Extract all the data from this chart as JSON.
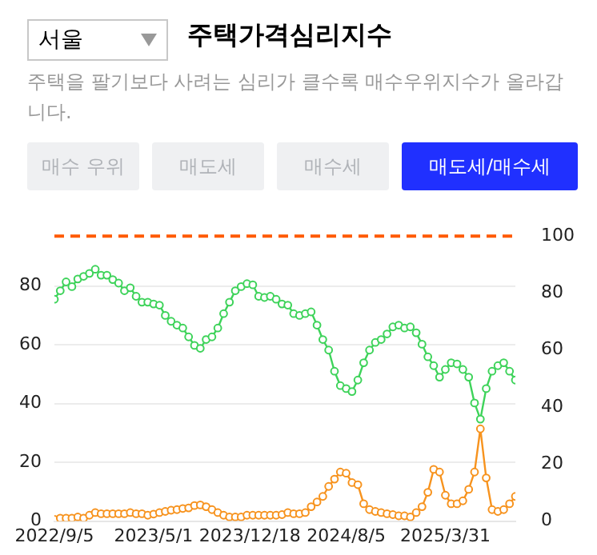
{
  "chart_data": {
    "type": "line",
    "title": "주택가격심리지수",
    "subtitle": "주택을 팔기보다 사려는 심리가 클수록 매수우위지수가 올라갑니다.",
    "annotations": [
      "서울",
      "매수 우위",
      "매도세",
      "매수세",
      "매도세/매수세"
    ],
    "x": [
      "2022-09-05",
      "2022-09-19",
      "2022-10-03",
      "2022-10-17",
      "2022-10-31",
      "2022-11-14",
      "2022-11-28",
      "2022-12-12",
      "2022-12-26",
      "2023-01-09",
      "2023-01-23",
      "2023-02-06",
      "2023-02-20",
      "2023-03-06",
      "2023-03-20",
      "2023-04-03",
      "2023-04-17",
      "2023-05-01",
      "2023-05-15",
      "2023-05-29",
      "2023-06-12",
      "2023-06-26",
      "2023-07-10",
      "2023-07-24",
      "2023-08-07",
      "2023-08-21",
      "2023-09-04",
      "2023-09-18",
      "2023-10-02",
      "2023-10-16",
      "2023-10-30",
      "2023-11-13",
      "2023-11-27",
      "2023-12-11",
      "2023-12-25",
      "2024-01-08",
      "2024-01-22",
      "2024-02-05",
      "2024-02-19",
      "2024-03-04",
      "2024-03-18",
      "2024-04-01",
      "2024-04-15",
      "2024-04-29",
      "2024-05-13",
      "2024-05-27",
      "2024-06-10",
      "2024-06-24",
      "2024-07-08",
      "2024-07-22",
      "2024-08-05",
      "2024-08-19",
      "2024-09-02",
      "2024-09-16",
      "2024-09-30",
      "2024-10-14",
      "2024-10-28",
      "2024-11-11",
      "2024-11-25",
      "2024-12-09",
      "2024-12-23",
      "2025-01-06",
      "2025-01-20",
      "2025-02-03",
      "2025-02-17",
      "2025-03-03",
      "2025-03-17",
      "2025-03-31",
      "2025-04-14",
      "2025-04-28",
      "2025-05-12",
      "2025-05-26",
      "2025-06-09",
      "2025-06-23",
      "2025-07-07",
      "2025-07-21",
      "2025-08-04",
      "2025-08-18",
      "2025-09-01",
      "2025-09-15"
    ],
    "series": [
      {
        "color": "#3ed35a",
        "values": [
          75.5,
          78.4,
          81.4,
          79.8,
          82.4,
          83.3,
          84.3,
          85.7,
          83.7,
          83.7,
          82.2,
          81,
          78.4,
          79.4,
          76.5,
          74.5,
          74.5,
          73.9,
          73.5,
          70,
          68,
          66.7,
          65.7,
          62.7,
          59.8,
          58.8,
          61.8,
          62.7,
          65.7,
          70.6,
          74.5,
          78.4,
          79.8,
          80.8,
          80.4,
          76.5,
          76.1,
          76.5,
          75.5,
          73.9,
          73.5,
          70.6,
          70,
          70.6,
          71.2,
          66.7,
          61.8,
          58.2,
          51,
          46.1,
          45.1,
          44.1,
          48,
          53.9,
          58.2,
          60.8,
          61.8,
          63.7,
          66.1,
          66.7,
          65.7,
          66.1,
          64.1,
          60.2,
          55.9,
          52.9,
          49,
          51.6,
          53.9,
          53.5,
          51.6,
          49,
          40.2,
          34.7,
          45.1,
          51,
          52.9,
          53.9,
          51,
          48
        ]
      },
      {
        "color": "#f7931e",
        "values": [
          0.6,
          1,
          1,
          1,
          1.4,
          1,
          2,
          2.9,
          2.5,
          2.5,
          2.5,
          2.5,
          2.5,
          2.9,
          2.5,
          2.5,
          2,
          2.4,
          2.9,
          3.3,
          3.7,
          3.9,
          4.3,
          4.5,
          5.3,
          5.5,
          4.9,
          3.9,
          2.9,
          2,
          1.4,
          1.4,
          1.4,
          2,
          2,
          2,
          2,
          2,
          2,
          2.2,
          2.9,
          2.5,
          2.5,
          2.9,
          4.9,
          6.5,
          8.4,
          11.8,
          14.3,
          16.7,
          16.3,
          13.1,
          12.4,
          5.9,
          3.9,
          3.3,
          2.9,
          2.5,
          2.2,
          1.8,
          1.8,
          1.4,
          2.9,
          4.9,
          9.8,
          17.6,
          16.7,
          8.8,
          5.9,
          5.9,
          6.9,
          10.8,
          16.7,
          31.4,
          14.7,
          3.9,
          3.3,
          3.9,
          5.9,
          8.4
        ]
      }
    ],
    "xlim": [
      "2022-09-05",
      "2025-09-15"
    ],
    "xticks": [
      {
        "value": "2022-09-05",
        "label": "2022/9/5"
      },
      {
        "value": "2023-05-01",
        "label": "2023/5/1"
      },
      {
        "value": "2023-12-18",
        "label": "2023/12/18"
      },
      {
        "value": "2024-08-05",
        "label": "2024/8/5"
      },
      {
        "value": "2025-03-31",
        "label": "2025/3/31"
      }
    ],
    "ylim": [
      0,
      97
    ],
    "yticks": [
      0,
      20,
      40,
      60,
      80
    ],
    "y2lim": [
      0,
      100
    ],
    "y2ticks": [
      0,
      20,
      40,
      60,
      80,
      100
    ],
    "ref_lines": [
      {
        "axis": "y2",
        "value": 100,
        "color": "#ff5a00",
        "line_style": "dashed"
      }
    ],
    "grid": "y",
    "legend": false,
    "marker": "circle",
    "line_style": "solid"
  }
}
